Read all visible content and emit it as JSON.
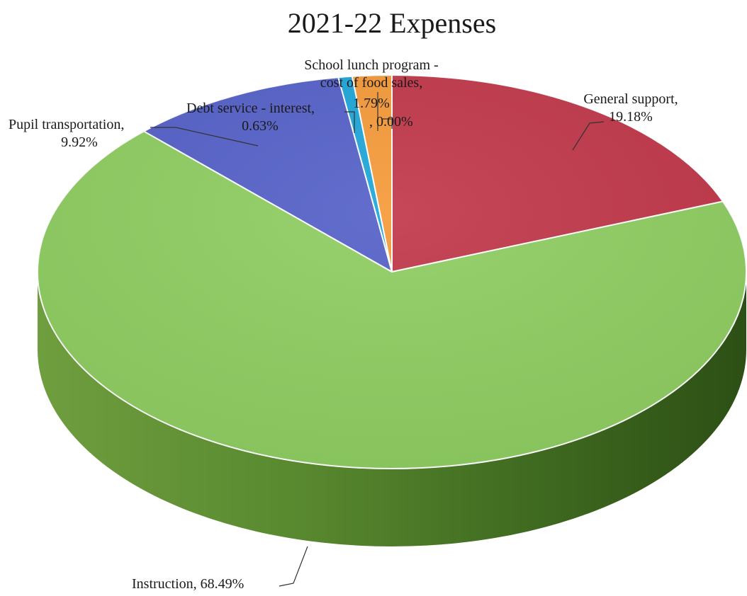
{
  "chart_data": {
    "type": "pie",
    "title": "2021-22 Expenses",
    "slices": [
      {
        "label": "General support",
        "value": 19.18,
        "value_text": "19.18%",
        "color": "#c1384a"
      },
      {
        "label": "Instruction",
        "value": 68.49,
        "value_text": "68.49%",
        "color": "#8fce62"
      },
      {
        "label": "Pupil transportation",
        "value": 9.92,
        "value_text": "9.92%",
        "color": "#5561c8"
      },
      {
        "label": "Debt service - interest",
        "value": 0.63,
        "value_text": "0.63%",
        "color": "#1fa6d8"
      },
      {
        "label": "School lunch program - cost of food sales",
        "value": 1.79,
        "value_text": "1.79%",
        "color": "#f59a3a"
      },
      {
        "label": "",
        "value": 0.0,
        "value_text": "0.00%",
        "color": "#f2c14e"
      }
    ],
    "style": "3d-pie",
    "start_angle_deg": 0,
    "direction": "clockwise",
    "legend": "none",
    "side_color_instruction": "#5e8c33"
  }
}
